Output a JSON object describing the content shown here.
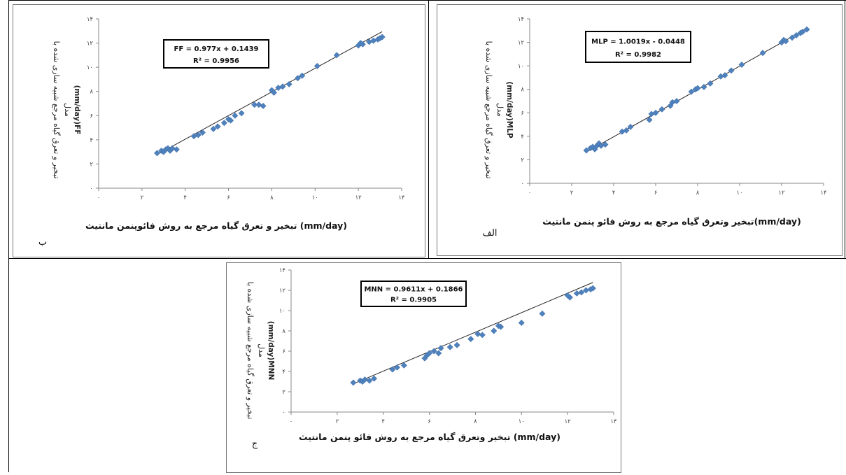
{
  "chart_data": [
    {
      "id": "b",
      "type": "scatter",
      "panel_label": "ب",
      "equation": "FF = 0.977x + 0.1439",
      "r_squared": "R² = 0.9956",
      "xlabel": "تبخیر و تعرق گیاه مرجع به روش فائوپنمن مانتیث (mm/day)",
      "ylabel_line1": "تبخیر و تعرق گیاه مرجع شبیه سازی شده با",
      "ylabel_line2": "مدل",
      "ylabel_line3": "(mm/day)FF",
      "xlim": [
        0,
        14
      ],
      "ylim": [
        0,
        14
      ],
      "x_ticks": [
        "۰",
        "۲",
        "۴",
        "۶",
        "۸",
        "۱۰",
        "۱۲",
        "۱۴"
      ],
      "y_ticks": [
        "۰",
        "۲",
        "۴",
        "۶",
        "۸",
        "۱۰",
        "۱۲",
        "۱۴"
      ],
      "trendline": {
        "slope": 0.977,
        "intercept": 0.1439
      },
      "point_color": "#4f81bd",
      "points": [
        [
          2.7,
          2.9
        ],
        [
          2.9,
          3.1
        ],
        [
          3.0,
          3.0
        ],
        [
          3.1,
          3.2
        ],
        [
          3.2,
          3.3
        ],
        [
          3.3,
          3.1
        ],
        [
          3.4,
          3.3
        ],
        [
          3.6,
          3.2
        ],
        [
          4.4,
          4.3
        ],
        [
          4.6,
          4.4
        ],
        [
          4.8,
          4.6
        ],
        [
          5.3,
          4.9
        ],
        [
          5.5,
          5.1
        ],
        [
          5.8,
          5.4
        ],
        [
          6.0,
          5.7
        ],
        [
          6.1,
          5.6
        ],
        [
          6.3,
          6.0
        ],
        [
          6.6,
          6.2
        ],
        [
          7.2,
          6.9
        ],
        [
          7.4,
          6.9
        ],
        [
          7.6,
          6.8
        ],
        [
          8.0,
          8.1
        ],
        [
          8.1,
          7.9
        ],
        [
          8.3,
          8.3
        ],
        [
          8.5,
          8.4
        ],
        [
          8.8,
          8.6
        ],
        [
          9.2,
          9.1
        ],
        [
          9.4,
          9.3
        ],
        [
          10.1,
          10.1
        ],
        [
          11.0,
          11.0
        ],
        [
          12.0,
          11.8
        ],
        [
          12.1,
          12.0
        ],
        [
          12.2,
          11.9
        ],
        [
          12.5,
          12.1
        ],
        [
          12.7,
          12.2
        ],
        [
          12.9,
          12.3
        ],
        [
          13.0,
          12.4
        ],
        [
          13.1,
          12.5
        ]
      ]
    },
    {
      "id": "alef",
      "type": "scatter",
      "panel_label": "الف",
      "equation": "MLP = 1.0019x - 0.0448",
      "r_squared": "R² = 0.9982",
      "xlabel": "تبخیر وتعرق گیاه مرجع به روش فائو پنمن مانتیث(mm/day)",
      "ylabel_line1": "تبخیر و تعرق گیاه مرجع شبیه سازی شده با",
      "ylabel_line2": "مدل",
      "ylabel_line3": "(mm/day)MLP",
      "xlim": [
        0,
        14
      ],
      "ylim": [
        0,
        14
      ],
      "x_ticks": [
        "۰",
        "۲",
        "۴",
        "۶",
        "۸",
        "۱۰",
        "۱۲",
        "۱۴"
      ],
      "y_ticks": [
        "۰",
        "۲",
        "۴",
        "۶",
        "۸",
        "۱۰",
        "۱۲",
        "۱۴"
      ],
      "trendline": {
        "slope": 1.0019,
        "intercept": -0.0448
      },
      "point_color": "#4f81bd",
      "points": [
        [
          2.7,
          2.8
        ],
        [
          2.9,
          3.0
        ],
        [
          3.0,
          3.1
        ],
        [
          3.1,
          2.9
        ],
        [
          3.2,
          3.2
        ],
        [
          3.3,
          3.4
        ],
        [
          3.4,
          3.2
        ],
        [
          3.6,
          3.3
        ],
        [
          4.4,
          4.4
        ],
        [
          4.6,
          4.5
        ],
        [
          4.8,
          4.8
        ],
        [
          5.7,
          5.4
        ],
        [
          5.8,
          5.9
        ],
        [
          6.0,
          6.0
        ],
        [
          6.3,
          6.3
        ],
        [
          6.7,
          6.6
        ],
        [
          6.8,
          6.9
        ],
        [
          7.0,
          7.0
        ],
        [
          7.7,
          7.8
        ],
        [
          7.9,
          8.0
        ],
        [
          8.0,
          8.1
        ],
        [
          8.3,
          8.2
        ],
        [
          8.6,
          8.5
        ],
        [
          9.1,
          9.1
        ],
        [
          9.3,
          9.2
        ],
        [
          9.6,
          9.6
        ],
        [
          10.1,
          10.1
        ],
        [
          11.1,
          11.1
        ],
        [
          12.0,
          12.0
        ],
        [
          12.1,
          12.2
        ],
        [
          12.2,
          12.1
        ],
        [
          12.5,
          12.4
        ],
        [
          12.7,
          12.6
        ],
        [
          12.9,
          12.8
        ],
        [
          13.0,
          12.9
        ],
        [
          13.2,
          13.1
        ]
      ]
    },
    {
      "id": "jim",
      "type": "scatter",
      "panel_label": "ج",
      "equation": "MNN = 0.9611x + 0.1866",
      "r_squared": "R² = 0.9905",
      "xlabel": "تبخیر وتعرق گیاه مرجع به روش فائو پنمن مانتیث (mm/day)",
      "ylabel_line1": "تبخیر و تعرق گیاه مرجع شبیه سازی شده با",
      "ylabel_line2": "مدل",
      "ylabel_line3": "(mm/day)MNN",
      "xlim": [
        0,
        14
      ],
      "ylim": [
        0,
        14
      ],
      "x_ticks": [
        "۰",
        "۲",
        "۴",
        "۶",
        "۸",
        "۱۰",
        "۱۲",
        "۱۴"
      ],
      "y_ticks": [
        "۰",
        "۲",
        "۴",
        "۶",
        "۸",
        "۱۰",
        "۱۲",
        "۱۴"
      ],
      "trendline": {
        "slope": 0.9611,
        "intercept": 0.1866
      },
      "point_color": "#4f81bd",
      "points": [
        [
          2.7,
          2.9
        ],
        [
          3.0,
          3.1
        ],
        [
          3.1,
          3.0
        ],
        [
          3.2,
          3.2
        ],
        [
          3.4,
          3.1
        ],
        [
          3.6,
          3.3
        ],
        [
          4.4,
          4.2
        ],
        [
          4.6,
          4.4
        ],
        [
          4.9,
          4.6
        ],
        [
          5.8,
          5.3
        ],
        [
          5.9,
          5.6
        ],
        [
          6.0,
          5.8
        ],
        [
          6.2,
          6.0
        ],
        [
          6.5,
          6.3
        ],
        [
          6.4,
          5.8
        ],
        [
          6.9,
          6.4
        ],
        [
          7.2,
          6.6
        ],
        [
          7.8,
          7.2
        ],
        [
          8.1,
          7.7
        ],
        [
          8.3,
          7.6
        ],
        [
          8.8,
          8.0
        ],
        [
          9.1,
          8.4
        ],
        [
          9.0,
          8.5
        ],
        [
          10.0,
          8.8
        ],
        [
          10.9,
          9.7
        ],
        [
          12.1,
          11.3
        ],
        [
          12.0,
          11.5
        ],
        [
          12.4,
          11.7
        ],
        [
          12.6,
          11.8
        ],
        [
          12.8,
          12.0
        ],
        [
          13.0,
          12.1
        ],
        [
          13.1,
          12.2
        ]
      ]
    }
  ]
}
